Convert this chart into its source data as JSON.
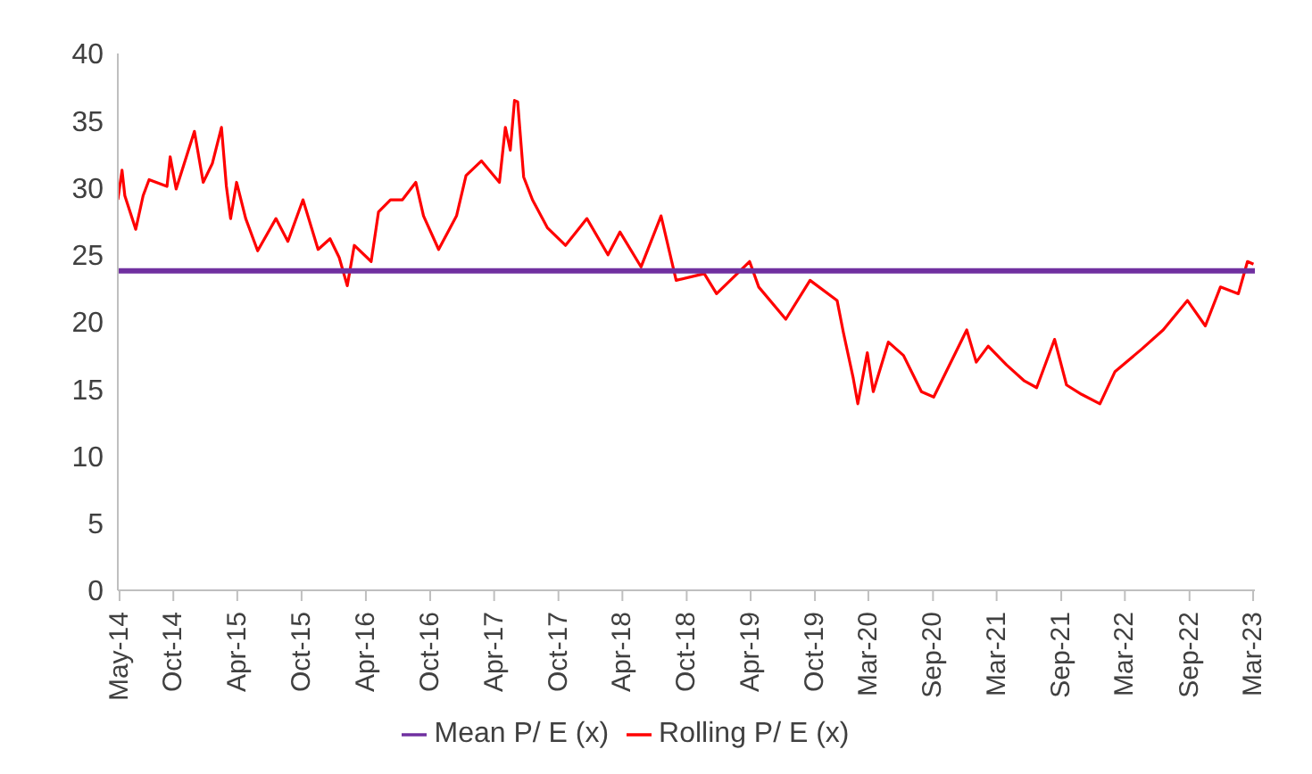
{
  "chart_data": {
    "type": "line",
    "xlim": [
      "2014-05-10",
      "2023-03-20"
    ],
    "xticks": [
      {
        "value": "2014-05-15",
        "label": "May-14"
      },
      {
        "value": "2014-10-15",
        "label": "Oct-14"
      },
      {
        "value": "2015-04-15",
        "label": "Apr-15"
      },
      {
        "value": "2015-10-15",
        "label": "Oct-15"
      },
      {
        "value": "2016-04-15",
        "label": "Apr-16"
      },
      {
        "value": "2016-10-15",
        "label": "Oct-16"
      },
      {
        "value": "2017-04-15",
        "label": "Apr-17"
      },
      {
        "value": "2017-10-15",
        "label": "Oct-17"
      },
      {
        "value": "2018-04-15",
        "label": "Apr-18"
      },
      {
        "value": "2018-10-15",
        "label": "Oct-18"
      },
      {
        "value": "2019-04-15",
        "label": "Apr-19"
      },
      {
        "value": "2019-10-15",
        "label": "Oct-19"
      },
      {
        "value": "2020-03-15",
        "label": "Mar-20"
      },
      {
        "value": "2020-09-15",
        "label": "Sep-20"
      },
      {
        "value": "2021-03-15",
        "label": "Mar-21"
      },
      {
        "value": "2021-09-15",
        "label": "Sep-21"
      },
      {
        "value": "2022-03-15",
        "label": "Mar-22"
      },
      {
        "value": "2022-09-15",
        "label": "Sep-22"
      },
      {
        "value": "2023-03-15",
        "label": "Mar-23"
      }
    ],
    "ylim": [
      0,
      40
    ],
    "yticks": [
      0,
      5,
      10,
      15,
      20,
      25,
      30,
      35,
      40
    ],
    "grid": false,
    "legend": "bottom",
    "marker": "none",
    "line_style": "solid",
    "series": [
      {
        "name": "Rolling P/ E (x)",
        "color": "#ff0000",
        "x": [
          "2014-05-10",
          "2014-05-22",
          "2014-05-30",
          "2014-06-30",
          "2014-07-21",
          "2014-08-07",
          "2014-09-27",
          "2014-10-06",
          "2014-10-23",
          "2014-12-14",
          "2015-01-08",
          "2015-02-03",
          "2015-03-01",
          "2015-03-15",
          "2015-03-27",
          "2015-04-13",
          "2015-05-09",
          "2015-06-12",
          "2015-08-03",
          "2015-09-06",
          "2015-10-19",
          "2015-12-01",
          "2016-01-04",
          "2016-01-30",
          "2016-02-22",
          "2016-03-13",
          "2016-04-30",
          "2016-05-21",
          "2016-06-24",
          "2016-07-28",
          "2016-09-04",
          "2016-09-26",
          "2016-11-08",
          "2016-12-29",
          "2017-01-25",
          "2017-03-10",
          "2017-04-30",
          "2017-05-17",
          "2017-05-31",
          "2017-06-12",
          "2017-06-21",
          "2017-07-08",
          "2017-08-02",
          "2017-09-14",
          "2017-11-04",
          "2018-01-04",
          "2018-03-05",
          "2018-04-08",
          "2018-06-07",
          "2018-08-03",
          "2018-09-15",
          "2018-12-04",
          "2019-01-08",
          "2019-04-12",
          "2019-05-08",
          "2019-07-24",
          "2019-10-01",
          "2019-12-17",
          "2020-01-04",
          "2020-02-01",
          "2020-02-14",
          "2020-03-12",
          "2020-03-29",
          "2020-05-11",
          "2020-06-23",
          "2020-08-13",
          "2020-09-17",
          "2020-12-20",
          "2021-01-16",
          "2021-02-19",
          "2021-04-12",
          "2021-06-02",
          "2021-07-07",
          "2021-08-27",
          "2021-09-30",
          "2021-11-12",
          "2022-01-03",
          "2022-02-15",
          "2022-05-03",
          "2022-07-02",
          "2022-09-09",
          "2022-10-30",
          "2022-12-12",
          "2023-02-01",
          "2023-02-27",
          "2023-03-16"
        ],
        "values": [
          29.1,
          31.3,
          29.4,
          26.9,
          29.4,
          30.6,
          30.1,
          32.3,
          29.9,
          34.2,
          30.4,
          31.8,
          34.5,
          30.1,
          27.7,
          30.4,
          27.7,
          25.3,
          27.7,
          26.0,
          29.1,
          25.4,
          26.2,
          24.8,
          22.7,
          25.7,
          24.5,
          28.2,
          29.1,
          29.1,
          30.4,
          27.9,
          25.4,
          27.9,
          30.9,
          32.0,
          30.4,
          34.5,
          32.8,
          36.5,
          36.4,
          30.8,
          29.1,
          27.0,
          25.7,
          27.7,
          25.0,
          26.7,
          24.1,
          27.9,
          23.1,
          23.6,
          22.1,
          24.5,
          22.6,
          20.2,
          23.1,
          21.6,
          19.2,
          15.8,
          13.9,
          17.7,
          14.8,
          18.5,
          17.5,
          14.8,
          14.4,
          19.4,
          17.0,
          18.2,
          16.8,
          15.6,
          15.1,
          18.7,
          15.3,
          14.6,
          13.9,
          16.3,
          18.0,
          19.4,
          21.6,
          19.7,
          22.6,
          22.1,
          24.5,
          24.3
        ]
      },
      {
        "name": "Mean P/ E (x)",
        "color": "#7030a0",
        "x": [
          "2014-05-10",
          "2023-03-20"
        ],
        "values": [
          23.8,
          23.8
        ]
      }
    ]
  }
}
